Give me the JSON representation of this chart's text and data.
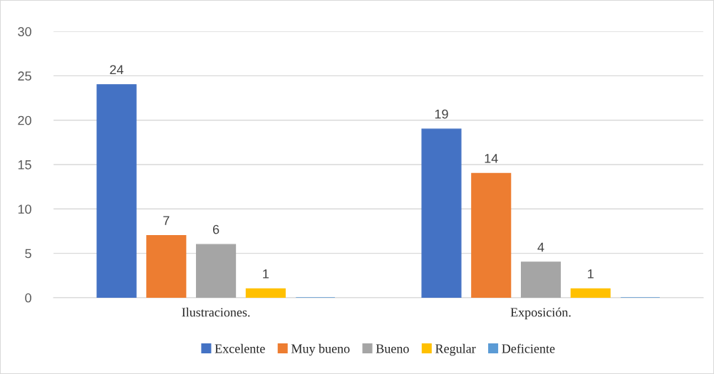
{
  "chart_data": {
    "type": "bar",
    "categories": [
      "Ilustraciones.",
      "Exposición."
    ],
    "series": [
      {
        "name": "Excelente",
        "color": "#4472c4",
        "values": [
          24,
          19
        ],
        "value_labels": [
          "24",
          "19"
        ]
      },
      {
        "name": "Muy bueno",
        "color": "#ed7d31",
        "values": [
          7,
          14
        ],
        "value_labels": [
          "7",
          "14"
        ]
      },
      {
        "name": "Bueno",
        "color": "#a5a5a5",
        "values": [
          6,
          4
        ],
        "value_labels": [
          "6",
          "4"
        ]
      },
      {
        "name": "Regular",
        "color": "#ffc000",
        "values": [
          1,
          1
        ],
        "value_labels": [
          "1",
          "1"
        ]
      },
      {
        "name": "Deficiente",
        "color": "#5b9bd5",
        "values": [
          0,
          0
        ],
        "value_labels": [
          null,
          null
        ]
      }
    ],
    "ylim": [
      0,
      30
    ],
    "yticks": [
      0,
      5,
      10,
      15,
      20,
      25,
      30
    ],
    "grid": "y",
    "legend": "bottom"
  }
}
